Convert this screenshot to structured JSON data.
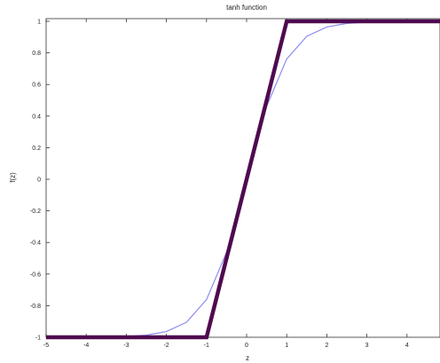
{
  "chart_data": {
    "type": "line",
    "title": "tanh function",
    "xlabel": "z",
    "ylabel": "f(z)",
    "xlim": [
      -5,
      5
    ],
    "ylim": [
      -1,
      1
    ],
    "x_ticks": [
      "-5",
      "-4",
      "-3",
      "-2",
      "-1",
      "0",
      "1",
      "2",
      "3",
      "4"
    ],
    "y_ticks": [
      "-1",
      "-0.8",
      "-0.6",
      "-0.4",
      "-0.2",
      "0",
      "0.2",
      "0.4",
      "0.6",
      "0.8",
      "1"
    ],
    "grid": false,
    "series": [
      {
        "color": "#8c8cf2",
        "x": [
          -5,
          -4,
          -3,
          -2.5,
          -2,
          -1.5,
          -1,
          -0.5,
          0,
          0.5,
          1,
          1.5,
          2,
          2.5,
          3,
          4,
          5
        ],
        "y": [
          -0.9999,
          -0.9993,
          -0.9951,
          -0.9866,
          -0.964,
          -0.9051,
          -0.7616,
          -0.4621,
          0,
          0.4621,
          0.7616,
          0.9051,
          0.964,
          0.9866,
          0.9951,
          0.9993,
          0.9999
        ]
      },
      {
        "color": "#4f0a4f",
        "x": [
          -5,
          -1,
          1,
          5
        ],
        "y": [
          -1,
          -1,
          1,
          1
        ]
      }
    ]
  }
}
